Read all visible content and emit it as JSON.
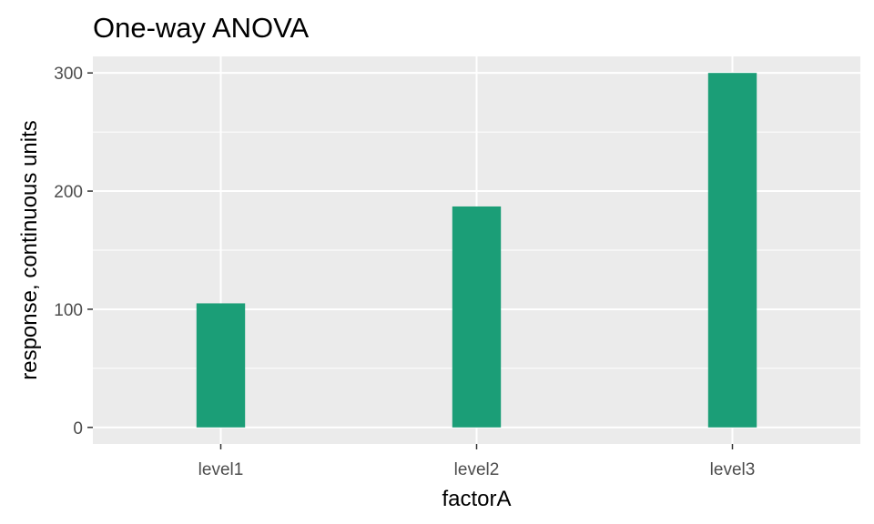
{
  "chart_data": {
    "type": "bar",
    "title": "One-way ANOVA",
    "xlabel": "factorA",
    "ylabel": "response, continuous units",
    "categories": [
      "level1",
      "level2",
      "level3"
    ],
    "values": [
      105,
      187,
      300
    ],
    "ylim": [
      -14,
      314
    ],
    "yticks": [
      0,
      100,
      200,
      300
    ],
    "grid": true,
    "legend": "none",
    "bar_color": "#1b9e77",
    "panel_background": "#ebebeb",
    "grid_color": "#ffffff"
  }
}
